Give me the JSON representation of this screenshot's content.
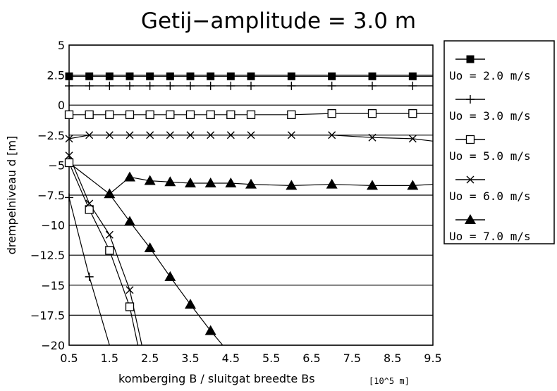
{
  "chart_data": {
    "type": "line",
    "title": "Getij−amplitude = 3.0 m",
    "xlabel": "komberging B / sluitgat breedte Bs",
    "xunit": "[10^5 m]",
    "ylabel": "drempelniveau d [m]",
    "xlim": [
      0.5,
      9.5
    ],
    "ylim": [
      -20,
      5
    ],
    "xticks": [
      "0.5",
      "1.5",
      "2.5",
      "3.5",
      "4.5",
      "5.5",
      "6.5",
      "7.5",
      "8.5",
      "9.5"
    ],
    "xtick_values": [
      0.5,
      1.5,
      2.5,
      3.5,
      4.5,
      5.5,
      6.5,
      7.5,
      8.5,
      9.5
    ],
    "yticks": [
      "5",
      "2.5",
      "0",
      "−2.5",
      "−5",
      "−7.5",
      "−10",
      "−12.5",
      "−15",
      "−17.5",
      "−20"
    ],
    "ytick_values": [
      5,
      2.5,
      0,
      -2.5,
      -5,
      -7.5,
      -10,
      -12.5,
      -15,
      -17.5,
      -20
    ],
    "grid": "horizontal",
    "legend_position": "right",
    "series": [
      {
        "name": "Uo = 2.0 m/s",
        "marker": "filled-square",
        "upper_branch": {
          "x": [
            0.5,
            1,
            1.5,
            2,
            2.5,
            3,
            3.5,
            4,
            4.5,
            5,
            6,
            7,
            8,
            9,
            9.5
          ],
          "y": [
            2.4,
            2.4,
            2.4,
            2.4,
            2.4,
            2.4,
            2.4,
            2.4,
            2.4,
            2.4,
            2.4,
            2.4,
            2.4,
            2.4,
            2.4
          ],
          "markers_x": [
            0.5,
            1,
            1.5,
            2,
            2.5,
            3,
            3.5,
            4,
            4.5,
            5,
            6,
            7,
            8,
            9
          ]
        }
      },
      {
        "name": "Uo = 3.0 m/s",
        "marker": "plus",
        "upper_branch": {
          "x": [
            0.5,
            1,
            1.5,
            2,
            2.5,
            3,
            3.5,
            4,
            4.5,
            5,
            6,
            7,
            8,
            9,
            9.5
          ],
          "y": [
            1.6,
            1.6,
            1.6,
            1.6,
            1.6,
            1.6,
            1.6,
            1.6,
            1.6,
            1.6,
            1.6,
            1.6,
            1.6,
            1.6,
            1.6
          ],
          "markers_x": [
            0.5,
            1,
            1.5,
            2,
            2.5,
            3,
            3.5,
            4,
            4.5,
            5,
            6,
            7,
            8,
            9
          ]
        },
        "lower_branch": {
          "x": [
            0.5,
            1,
            1.5
          ],
          "y": [
            -7.7,
            -14.3,
            -20
          ],
          "markers_x": [
            0.5,
            1
          ]
        }
      },
      {
        "name": "Uo = 5.0 m/s",
        "marker": "open-square",
        "upper_branch": {
          "x": [
            0.5,
            1,
            1.5,
            2,
            2.5,
            3,
            3.5,
            4,
            4.5,
            5,
            6,
            7,
            8,
            9,
            9.5
          ],
          "y": [
            -0.8,
            -0.8,
            -0.8,
            -0.8,
            -0.8,
            -0.8,
            -0.8,
            -0.8,
            -0.8,
            -0.8,
            -0.8,
            -0.7,
            -0.7,
            -0.7,
            -0.7
          ],
          "markers_x": [
            0.5,
            1,
            1.5,
            2,
            2.5,
            3,
            3.5,
            4,
            4.5,
            5,
            6,
            7,
            8,
            9
          ]
        },
        "lower_branch": {
          "x": [
            0.5,
            1,
            1.5,
            2,
            2.2
          ],
          "y": [
            -4.8,
            -8.7,
            -12.1,
            -16.8,
            -20
          ],
          "markers_x": [
            0.5,
            1,
            1.5,
            2
          ]
        }
      },
      {
        "name": "Uo = 6.0 m/s",
        "marker": "cross",
        "upper_branch": {
          "x": [
            0.5,
            1,
            1.5,
            2,
            2.5,
            3,
            3.5,
            4,
            4.5,
            5,
            6,
            7,
            8,
            9,
            9.5
          ],
          "y": [
            -2.8,
            -2.5,
            -2.5,
            -2.5,
            -2.5,
            -2.5,
            -2.5,
            -2.5,
            -2.5,
            -2.5,
            -2.5,
            -2.5,
            -2.7,
            -2.8,
            -3.0
          ],
          "markers_x": [
            0.5,
            1,
            1.5,
            2,
            2.5,
            3,
            3.5,
            4,
            4.5,
            5,
            6,
            7,
            8,
            9
          ]
        },
        "lower_branch": {
          "x": [
            0.5,
            1,
            1.5,
            2,
            2.3
          ],
          "y": [
            -4.2,
            -8.2,
            -10.8,
            -15.4,
            -20
          ],
          "markers_x": [
            0.5,
            1,
            1.5,
            2
          ]
        }
      },
      {
        "name": "Uo = 7.0 m/s",
        "marker": "filled-triangle",
        "upper_branch": {
          "x": [
            0.5,
            1.5,
            2,
            2.5,
            3,
            3.5,
            4,
            4.5,
            5,
            6,
            7,
            8,
            9,
            9.5
          ],
          "y": [
            -4.8,
            -7.4,
            -6.0,
            -6.3,
            -6.4,
            -6.5,
            -6.5,
            -6.5,
            -6.6,
            -6.7,
            -6.6,
            -6.7,
            -6.7,
            -6.6
          ],
          "markers_x": [
            1.5,
            2,
            2.5,
            3,
            3.5,
            4,
            4.5,
            5,
            6,
            7,
            8,
            9
          ]
        },
        "lower_branch": {
          "x": [
            1.5,
            2,
            2.5,
            3,
            3.5,
            4,
            4.3
          ],
          "y": [
            -7.4,
            -9.7,
            -11.9,
            -14.3,
            -16.6,
            -18.8,
            -20
          ],
          "markers_x": [
            2,
            2.5,
            3,
            3.5,
            4
          ]
        }
      }
    ]
  }
}
